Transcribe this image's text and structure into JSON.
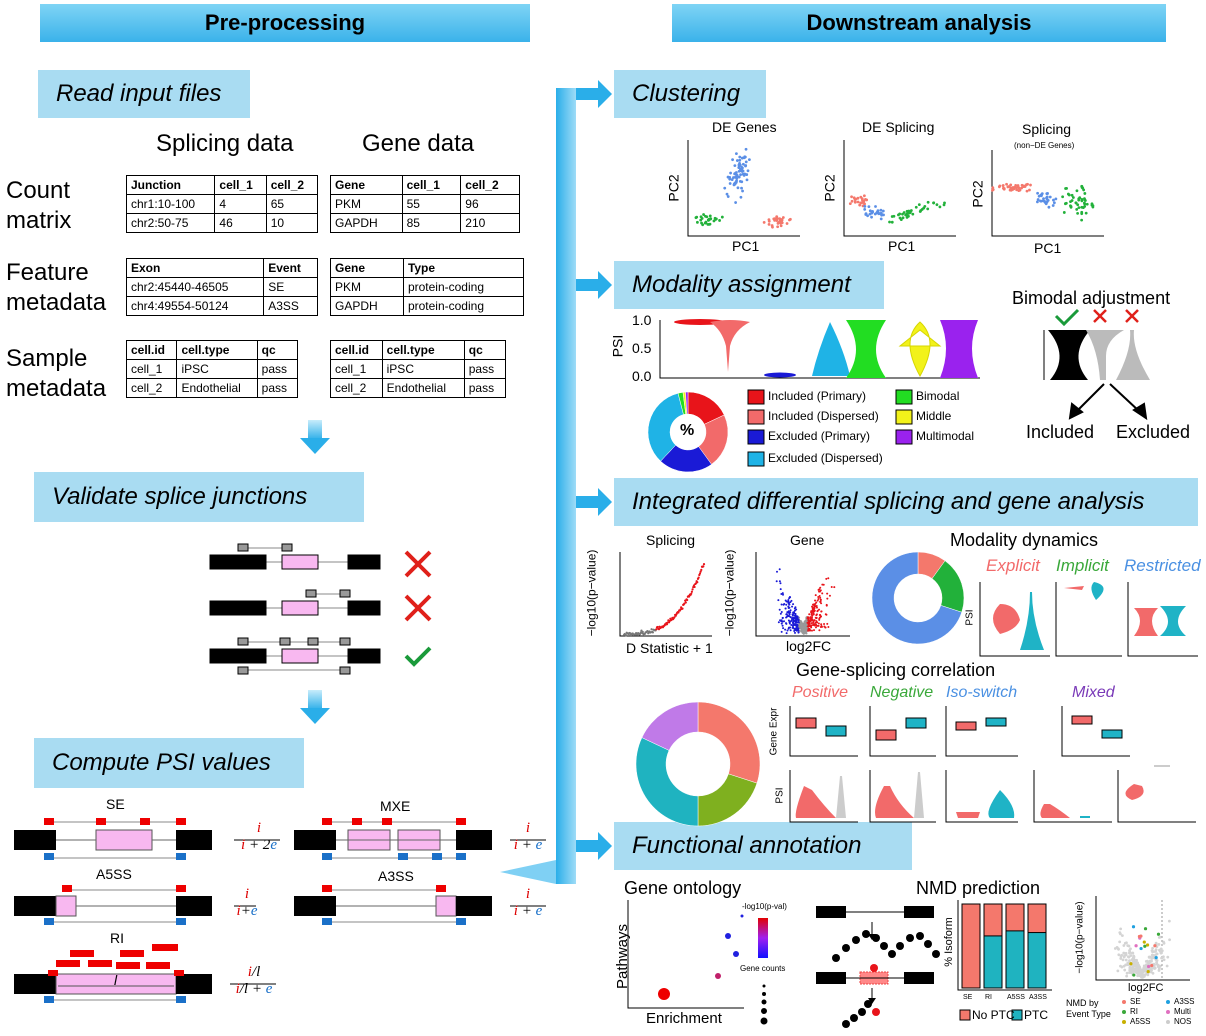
{
  "headers": {
    "left": "Pre-processing",
    "right": "Downstream analysis"
  },
  "steps": {
    "read": "Read input files",
    "validate": "Validate splice junctions",
    "psi": "Compute PSI values",
    "clustering": "Clustering",
    "modality": "Modality assignment",
    "integrated": "Integrated differential splicing and gene analysis",
    "functional": "Functional annotation"
  },
  "input": {
    "splicing_title": "Splicing data",
    "gene_title": "Gene data",
    "row_labels": [
      [
        "Count",
        "matrix"
      ],
      [
        "Feature",
        "metadata"
      ],
      [
        "Sample",
        "metadata"
      ]
    ],
    "tables": {
      "count_splice": [
        [
          "Junction",
          "cell_1",
          "cell_2"
        ],
        [
          "chr1:10-100",
          "4",
          "65"
        ],
        [
          "chr2:50-75",
          "46",
          "10"
        ]
      ],
      "count_gene": [
        [
          "Gene",
          "cell_1",
          "cell_2"
        ],
        [
          "PKM",
          "55",
          "96"
        ],
        [
          "GAPDH",
          "85",
          "210"
        ]
      ],
      "feat_splice": [
        [
          "Exon",
          "Event"
        ],
        [
          "chr2:45440-46505",
          "SE"
        ],
        [
          "chr4:49554-50124",
          "A3SS"
        ]
      ],
      "feat_gene": [
        [
          "Gene",
          "Type"
        ],
        [
          "PKM",
          "protein-coding"
        ],
        [
          "GAPDH",
          "protein-coding"
        ]
      ],
      "samp_splice": [
        [
          "cell.id",
          "cell.type",
          "qc"
        ],
        [
          "cell_1",
          "iPSC",
          "pass"
        ],
        [
          "cell_2",
          "Endothelial",
          "pass"
        ]
      ],
      "samp_gene": [
        [
          "cell.id",
          "cell.type",
          "qc"
        ],
        [
          "cell_1",
          "iPSC",
          "pass"
        ],
        [
          "cell_2",
          "Endothelial",
          "pass"
        ]
      ]
    }
  },
  "psi": {
    "se": "SE",
    "mxe": "MXE",
    "a5ss": "A5SS",
    "a3ss": "A3SS",
    "ri": "RI",
    "l": "l"
  },
  "clustering": {
    "plots": [
      {
        "title": "DE Genes",
        "sub": ""
      },
      {
        "title": "DE Splicing",
        "sub": ""
      },
      {
        "title": "Splicing",
        "sub": "(non−DE Genes)"
      }
    ],
    "xlabel": "PC1",
    "ylabel": "PC2"
  },
  "modality": {
    "ylabel": "PSI",
    "ticks": [
      "1.0",
      "0.5",
      "0.0"
    ],
    "pie_label": "%",
    "legend": [
      {
        "label": "Included (Primary)",
        "color": "#e8141a"
      },
      {
        "label": "Included (Dispersed)",
        "color": "#f26a6a"
      },
      {
        "label": "Excluded (Primary)",
        "color": "#1a1ad6"
      },
      {
        "label": "Excluded (Dispersed)",
        "color": "#1fb3e6"
      },
      {
        "label": "Bimodal",
        "color": "#22dd22"
      },
      {
        "label": "Middle",
        "color": "#f2f21a"
      },
      {
        "label": "Multimodal",
        "color": "#9a22ee"
      }
    ],
    "bimodal_title": "Bimodal adjustment",
    "included": "Included",
    "excluded": "Excluded"
  },
  "integrated": {
    "splicing": "Splicing",
    "gene": "Gene",
    "ylabel": "−log10(p−value)",
    "xlabel_splicing": "D Statistic + 1",
    "xlabel_gene": "log2FC",
    "modality_dynamics": "Modality dynamics",
    "explicit": "Explicit",
    "implicit": "Implicit",
    "restricted": "Restricted",
    "psi": "PSI",
    "correlation_title": "Gene-splicing correlation",
    "positive": "Positive",
    "negative": "Negative",
    "isoswitch": "Iso-switch",
    "mixed": "Mixed",
    "gene_expr": "Gene Expr"
  },
  "functional": {
    "go_title": "Gene ontology",
    "pathways": "Pathways",
    "enrichment": "Enrichment",
    "pval_legend": "-log10(p-val)",
    "gene_counts": "Gene counts",
    "nmd_title": "NMD prediction",
    "pct_isoform": "% Isoform",
    "bar_labels": [
      "SE",
      "RI",
      "A5SS",
      "A3SS"
    ],
    "no_ptc": "No PTC",
    "ptc": "PTC",
    "volcano_y": "−log10(p−value)",
    "volcano_x": "log2FC",
    "nmd_by": "NMD by",
    "event_type": "Event Type",
    "event_legend": [
      "SE",
      "RI",
      "A5SS",
      "A3SS",
      "Multi",
      "NOS"
    ]
  }
}
